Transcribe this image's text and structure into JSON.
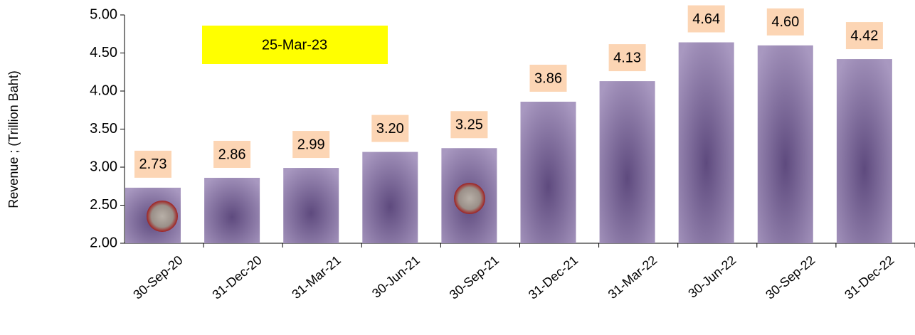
{
  "chart_data": {
    "type": "bar",
    "y_label": "Revenue ;  (Trillion Baht)",
    "annotation": "25-Mar-23",
    "categories": [
      "30-Sep-20",
      "31-Dec-20",
      "31-Mar-21",
      "30-Jun-21",
      "30-Sep-21",
      "31-Dec-21",
      "31-Mar-22",
      "30-Jun-22",
      "30-Sep-22",
      "31-Dec-22"
    ],
    "values": [
      2.73,
      2.86,
      2.99,
      3.2,
      3.25,
      3.86,
      4.13,
      4.64,
      4.6,
      4.42
    ],
    "value_labels": [
      "2.73",
      "2.86",
      "2.99",
      "3.20",
      "3.25",
      "3.86",
      "4.13",
      "4.64",
      "4.60",
      "4.42"
    ],
    "color": "#8f7aa8",
    "ylim": [
      2,
      5
    ],
    "yticks": [
      {
        "value": 2,
        "label": "2.00"
      },
      {
        "value": 2.5,
        "label": "2.50"
      },
      {
        "value": 3,
        "label": "3.00"
      },
      {
        "value": 3.5,
        "label": "3.50"
      },
      {
        "value": 4,
        "label": "4.00"
      },
      {
        "value": 4.5,
        "label": "4.50"
      },
      {
        "value": 5,
        "label": "5.00"
      }
    ]
  }
}
